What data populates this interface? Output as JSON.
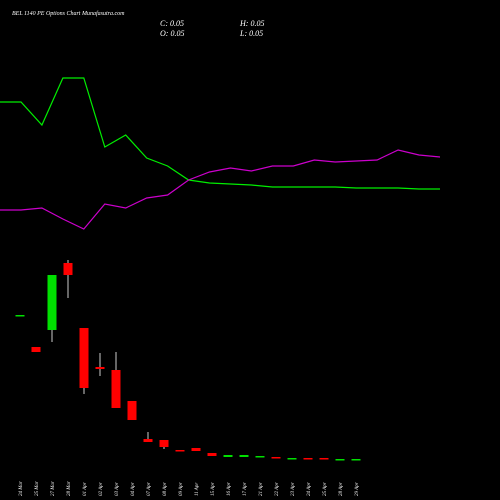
{
  "chart_data": {
    "type": "candlestick",
    "title": "BEL 1140 PE Options Chart Munafasutra.com",
    "ohlc_labels": [
      "C: 0.05",
      "H: 0.05",
      "O: 0.05",
      "L: 0.05"
    ],
    "categories": [
      "24 Mar",
      "25 Mar",
      "27 Mar",
      "28 Mar",
      "01 Apr",
      "02 Apr",
      "03 Apr",
      "04 Apr",
      "07 Apr",
      "08 Apr",
      "09 Apr",
      "11 Apr",
      "15 Apr",
      "16 Apr",
      "17 Apr",
      "21 Apr",
      "22 Apr",
      "23 Apr",
      "24 Apr",
      "25 Apr",
      "28 Apr",
      "29 Apr"
    ],
    "open": [
      7.25,
      5.65,
      6.5,
      9.85,
      6.6,
      4.65,
      4.5,
      2.95,
      1.05,
      1.0,
      0.5,
      0.6,
      0.35,
      0.15,
      0.15,
      0.15,
      0.15,
      0.1,
      0.1,
      0.1,
      0.05,
      0.05
    ],
    "high": [
      7.25,
      5.65,
      9.25,
      10.0,
      6.6,
      5.35,
      5.4,
      2.95,
      1.4,
      1.0,
      0.5,
      0.6,
      0.35,
      0.25,
      0.25,
      0.2,
      0.15,
      0.1,
      0.1,
      0.1,
      0.05,
      0.05
    ],
    "low": [
      7.25,
      5.4,
      5.9,
      8.1,
      3.3,
      4.2,
      2.6,
      2.0,
      0.9,
      0.55,
      0.45,
      0.45,
      0.2,
      0.15,
      0.15,
      0.15,
      0.1,
      0.1,
      0.05,
      0.05,
      0.05,
      0.05
    ],
    "close": [
      7.25,
      5.4,
      9.25,
      9.25,
      3.6,
      4.55,
      2.6,
      2.0,
      0.9,
      0.65,
      0.45,
      0.45,
      0.2,
      0.25,
      0.25,
      0.2,
      0.1,
      0.1,
      0.05,
      0.05,
      0.05,
      0.05
    ],
    "ylim": [
      0,
      10.25
    ],
    "up_color": "#00e000",
    "down_color": "#ff0000",
    "lines": [
      {
        "color": "#00ee00",
        "axis": "y2",
        "values": [
          148,
          148,
          125,
          172,
          172,
          103,
          115,
          92,
          84,
          70,
          67,
          66,
          65,
          63,
          63,
          63,
          63,
          62,
          62,
          62,
          61,
          61
        ]
      },
      {
        "color": "#cc00cc",
        "axis": "y2",
        "values": [
          40,
          40,
          42,
          31,
          21,
          46,
          42,
          52,
          55,
          70,
          78,
          82,
          79,
          84,
          84,
          90,
          88,
          89,
          90,
          100,
          95,
          93
        ]
      }
    ],
    "y2lim": [
      0,
      200
    ]
  }
}
